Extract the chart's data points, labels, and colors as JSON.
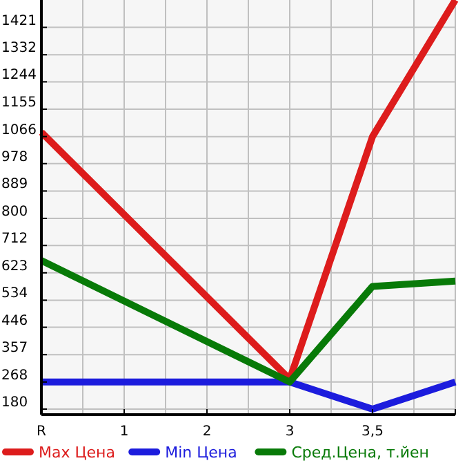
{
  "chart_data": {
    "type": "line",
    "categories": [
      "R",
      "1",
      "2",
      "3",
      "3,5",
      null
    ],
    "series": [
      {
        "name": "Max Цена",
        "color": "#dd1c1c",
        "values": [
          1080,
          null,
          null,
          277,
          1066,
          1510
        ]
      },
      {
        "name": "Min Цена",
        "color": "#1c1cdd",
        "values": [
          268,
          null,
          null,
          268,
          180,
          268
        ]
      },
      {
        "name": "Сред.Цена, т.йен",
        "color": "#087a08",
        "values": [
          663,
          null,
          null,
          268,
          579,
          596
        ]
      }
    ],
    "ylim": [
      162,
      1510
    ],
    "yticks": [
      180,
      268,
      357,
      446,
      534,
      623,
      712,
      800,
      889,
      978,
      1066,
      1155,
      1244,
      1332,
      1421
    ],
    "grid": true,
    "legend": "bottom",
    "line_style": "solid"
  }
}
